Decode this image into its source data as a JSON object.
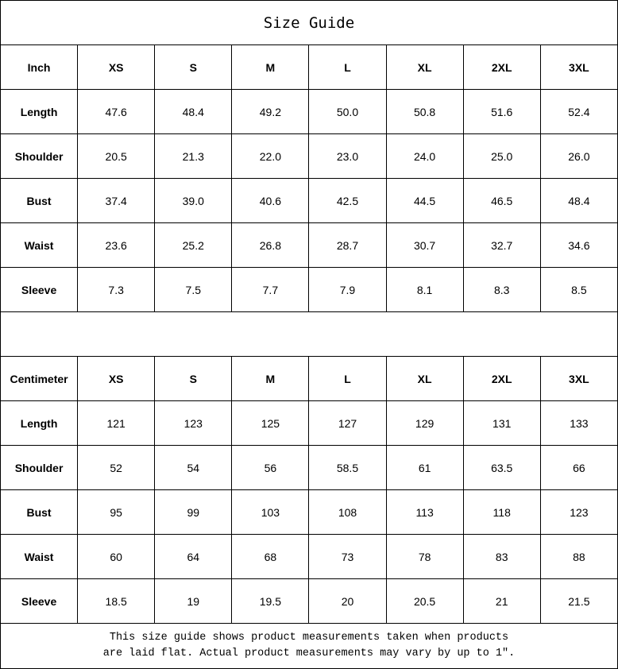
{
  "title": "Size Guide",
  "sizes": [
    "XS",
    "S",
    "M",
    "L",
    "XL",
    "2XL",
    "3XL"
  ],
  "tables": [
    {
      "unit": "Inch",
      "rows": [
        {
          "label": "Length",
          "values": [
            "47.6",
            "48.4",
            "49.2",
            "50.0",
            "50.8",
            "51.6",
            "52.4"
          ]
        },
        {
          "label": "Shoulder",
          "values": [
            "20.5",
            "21.3",
            "22.0",
            "23.0",
            "24.0",
            "25.0",
            "26.0"
          ]
        },
        {
          "label": "Bust",
          "values": [
            "37.4",
            "39.0",
            "40.6",
            "42.5",
            "44.5",
            "46.5",
            "48.4"
          ]
        },
        {
          "label": "Waist",
          "values": [
            "23.6",
            "25.2",
            "26.8",
            "28.7",
            "30.7",
            "32.7",
            "34.6"
          ]
        },
        {
          "label": "Sleeve",
          "values": [
            "7.3",
            "7.5",
            "7.7",
            "7.9",
            "8.1",
            "8.3",
            "8.5"
          ]
        }
      ]
    },
    {
      "unit": "Centimeter",
      "rows": [
        {
          "label": "Length",
          "values": [
            "121",
            "123",
            "125",
            "127",
            "129",
            "131",
            "133"
          ]
        },
        {
          "label": "Shoulder",
          "values": [
            "52",
            "54",
            "56",
            "58.5",
            "61",
            "63.5",
            "66"
          ]
        },
        {
          "label": "Bust",
          "values": [
            "95",
            "99",
            "103",
            "108",
            "113",
            "118",
            "123"
          ]
        },
        {
          "label": "Waist",
          "values": [
            "60",
            "64",
            "68",
            "73",
            "78",
            "83",
            "88"
          ]
        },
        {
          "label": "Sleeve",
          "values": [
            "18.5",
            "19",
            "19.5",
            "20",
            "20.5",
            "21",
            "21.5"
          ]
        }
      ]
    }
  ],
  "note_line1": "This size guide shows product measurements taken when products",
  "note_line2": "are laid flat. Actual product measurements may vary by up to 1″."
}
